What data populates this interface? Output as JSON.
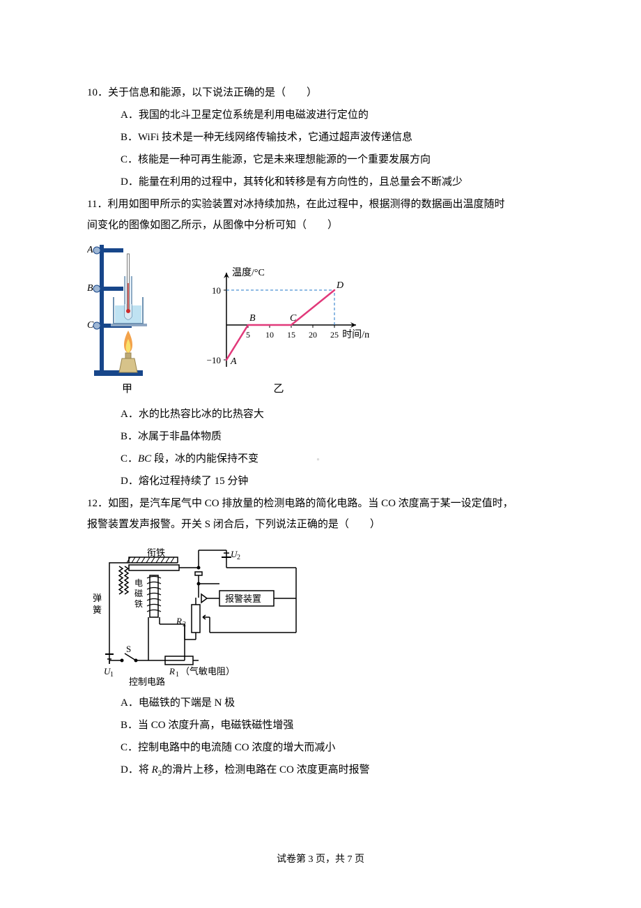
{
  "q10": {
    "stem": "10．关于信息和能源，以下说法正确的是（　　）",
    "A": "A．我国的北斗卫星定位系统是利用电磁波进行定位的",
    "B": "B．WiFi 技术是一种无线网络传输技术，它通过超声波传递信息",
    "C": "C．核能是一种可再生能源，它是未来理想能源的一个重要发展方向",
    "D": "D．能量在利用的过程中，其转化和转移是有方向性的，且总量会不断减少"
  },
  "q11": {
    "stem1": "11．利用如图甲所示的实验装置对冰持续加热，在此过程中，根据测得的数据画出温度随时",
    "stem2": "间变化的图像如图乙所示，从图像中分析可知（　　）",
    "A": "A．水的比热容比冰的比热容大",
    "B": "B．冰属于非晶体物质",
    "C_pre": "C．",
    "C_mid": "BC",
    "C_post": " 段，冰的内能保持不变",
    "D": "D．熔化过程持续了 15 分钟",
    "fig_caption_left": "甲",
    "fig_caption_right": "乙",
    "apparatus": {
      "labels": [
        "A",
        "B",
        "C"
      ],
      "stand_color": "#17468a",
      "beaker_color": "#bcdcee",
      "water_color": "#bfe2f2",
      "tube_color": "#d9e9f3",
      "flame_outer": "#f3a24a",
      "flame_inner": "#f9e06a",
      "burner_color": "#d7c38a"
    },
    "graph": {
      "y_label": "温度/°C",
      "x_label": "时间/min",
      "x_ticks": [
        "5",
        "10",
        "15",
        "20",
        "25"
      ],
      "y_ticks": [
        {
          "v": 10,
          "label": "10"
        },
        {
          "v": -10,
          "label": "−10"
        }
      ],
      "points": {
        "A": {
          "t": 0,
          "T": -10,
          "label": "A"
        },
        "B": {
          "t": 5,
          "T": 0,
          "label": "B"
        },
        "C": {
          "t": 15,
          "T": 0,
          "label": "C"
        },
        "D": {
          "t": 25,
          "T": 10,
          "label": "D"
        }
      },
      "line_color": "#e1397a",
      "dash_color": "#1f74c8",
      "axis_color": "#000000",
      "font_size_pt": 12,
      "xlim": [
        0,
        30
      ],
      "ylim": [
        -12,
        15
      ]
    }
  },
  "q12": {
    "stem1": "12．如图，是汽车尾气中 CO 排放量的检测电路的简化电路。当 CO 浓度高于某一设定值时，",
    "stem2": "报警装置发声报警。开关 S 闭合后，下列说法正确的是（　　）",
    "A": "A．电磁铁的下端是 N 极",
    "B": "B．当 CO 浓度升高，电磁铁磁性增强",
    "C": "C．控制电路中的电流随 CO 浓度的增大而减小",
    "D_pre": "D．将 ",
    "D_R": "R",
    "D_sub": "2",
    "D_post": "的滑片上移，检测电路在 CO 浓度更高时报警",
    "circuit": {
      "labels": {
        "spring": "弹簧",
        "armature": "衔铁",
        "electromagnet": "电磁铁",
        "alarm": "报警装置",
        "R2": "R₂",
        "S": "S",
        "U1": "U₁",
        "U2": "U₂",
        "R1": "R₁",
        "R1_note": "（气敏电阻）",
        "control": "控制电路"
      },
      "line_color": "#000000",
      "resistor_fill": "#efe7a6",
      "spring_color": "#000000",
      "coil_color": "#000000",
      "font_size_pt": 12
    }
  },
  "footer": "试卷第 3 页，共 7 页"
}
